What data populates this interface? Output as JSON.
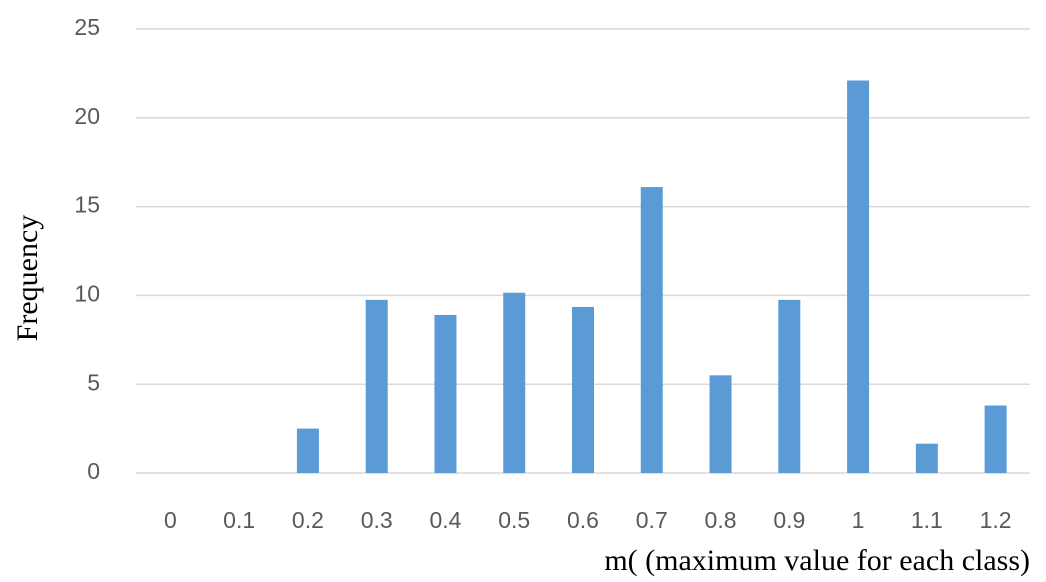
{
  "chart_data": {
    "type": "bar",
    "x_label": "m( (maximum value for each class)",
    "y_label": "Frequency",
    "categories": [
      "0",
      "0.1",
      "0.2",
      "0.3",
      "0.4",
      "0.5",
      "0.6",
      "0.7",
      "0.8",
      "0.9",
      "1",
      "1.1",
      "1.2"
    ],
    "values": [
      0,
      0,
      2.5,
      9.75,
      8.9,
      10.15,
      9.35,
      16.1,
      5.5,
      9.75,
      22.1,
      1.65,
      3.8
    ],
    "color": "#5b9bd5",
    "ylim": [
      0,
      25
    ],
    "yticks": [
      0,
      5,
      10,
      15,
      20,
      25
    ],
    "grid": true
  }
}
